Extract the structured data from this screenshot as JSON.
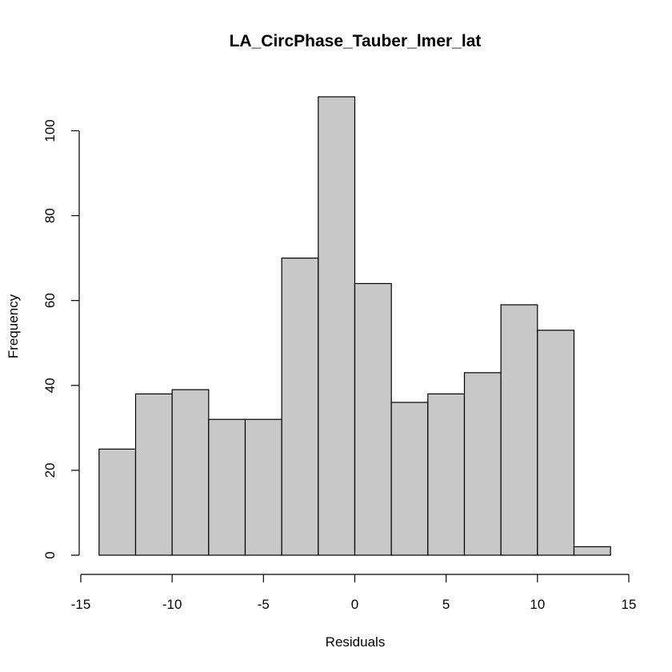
{
  "chart_data": {
    "type": "bar",
    "title": "LA_CircPhase_Tauber_lmer_lat",
    "xlabel": "Residuals",
    "ylabel": "Frequency",
    "bin_edges": [
      -14,
      -12,
      -10,
      -8,
      -6,
      -4,
      -2,
      0,
      2,
      4,
      6,
      8,
      10,
      12,
      14
    ],
    "values": [
      25,
      38,
      39,
      32,
      32,
      70,
      108,
      64,
      36,
      38,
      43,
      59,
      53,
      2
    ],
    "xlim": [
      -15,
      15
    ],
    "ylim": [
      0,
      108
    ],
    "x_ticks": [
      -15,
      -10,
      -5,
      0,
      5,
      10,
      15
    ],
    "x_tick_labels": [
      "-15",
      "-10",
      "-5",
      "0",
      "5",
      "10",
      "15"
    ],
    "y_ticks": [
      0,
      20,
      40,
      60,
      80,
      100
    ],
    "y_tick_labels": [
      "0",
      "20",
      "40",
      "60",
      "80",
      "100"
    ],
    "bar_color": "#c8c8c8",
    "grid": false,
    "legend": "none"
  }
}
